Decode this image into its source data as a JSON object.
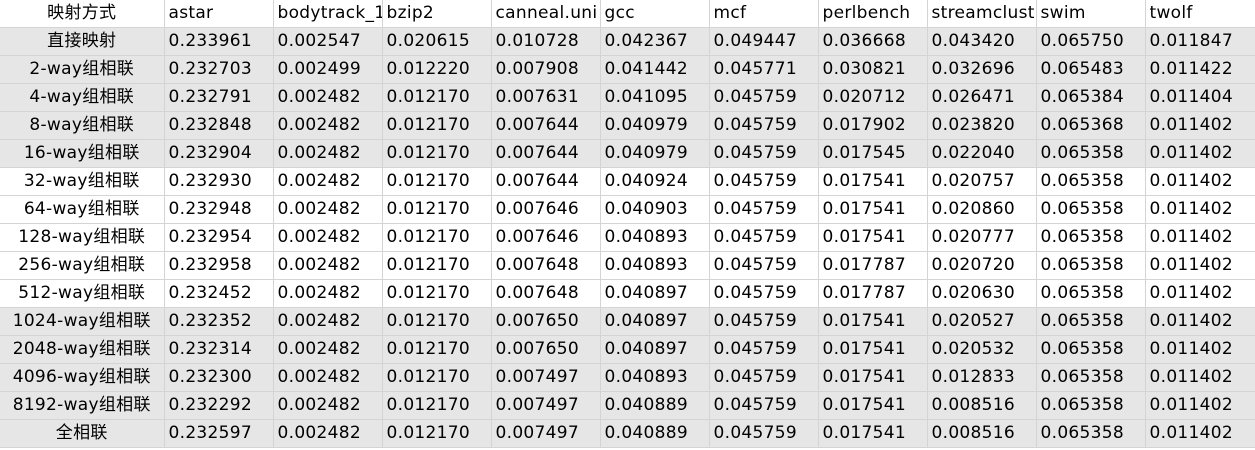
{
  "table": {
    "columns": [
      "映射方式",
      "astar",
      "bodytrack_1",
      "bzip2",
      "canneal.uni",
      "gcc",
      "mcf",
      "perlbench",
      "streamclust",
      "swim",
      "twolf"
    ],
    "rows": [
      {
        "shaded": true,
        "cells": [
          "直接映射",
          "0.233961",
          "0.002547",
          "0.020615",
          "0.010728",
          "0.042367",
          "0.049447",
          "0.036668",
          "0.043420",
          "0.065750",
          "0.011847"
        ]
      },
      {
        "shaded": true,
        "cells": [
          "2-way组相联",
          "0.232703",
          "0.002499",
          "0.012220",
          "0.007908",
          "0.041442",
          "0.045771",
          "0.030821",
          "0.032696",
          "0.065483",
          "0.011422"
        ]
      },
      {
        "shaded": true,
        "cells": [
          "4-way组相联",
          "0.232791",
          "0.002482",
          "0.012170",
          "0.007631",
          "0.041095",
          "0.045759",
          "0.020712",
          "0.026471",
          "0.065384",
          "0.011404"
        ]
      },
      {
        "shaded": true,
        "cells": [
          "8-way组相联",
          "0.232848",
          "0.002482",
          "0.012170",
          "0.007644",
          "0.040979",
          "0.045759",
          "0.017902",
          "0.023820",
          "0.065368",
          "0.011402"
        ]
      },
      {
        "shaded": true,
        "cells": [
          "16-way组相联",
          "0.232904",
          "0.002482",
          "0.012170",
          "0.007644",
          "0.040979",
          "0.045759",
          "0.017545",
          "0.022040",
          "0.065358",
          "0.011402"
        ]
      },
      {
        "shaded": false,
        "cells": [
          "32-way组相联",
          "0.232930",
          "0.002482",
          "0.012170",
          "0.007644",
          "0.040924",
          "0.045759",
          "0.017541",
          "0.020757",
          "0.065358",
          "0.011402"
        ]
      },
      {
        "shaded": false,
        "cells": [
          "64-way组相联",
          "0.232948",
          "0.002482",
          "0.012170",
          "0.007646",
          "0.040903",
          "0.045759",
          "0.017541",
          "0.020860",
          "0.065358",
          "0.011402"
        ]
      },
      {
        "shaded": false,
        "cells": [
          "128-way组相联",
          "0.232954",
          "0.002482",
          "0.012170",
          "0.007646",
          "0.040893",
          "0.045759",
          "0.017541",
          "0.020777",
          "0.065358",
          "0.011402"
        ]
      },
      {
        "shaded": false,
        "cells": [
          "256-way组相联",
          "0.232958",
          "0.002482",
          "0.012170",
          "0.007648",
          "0.040893",
          "0.045759",
          "0.017787",
          "0.020720",
          "0.065358",
          "0.011402"
        ]
      },
      {
        "shaded": false,
        "cells": [
          "512-way组相联",
          "0.232452",
          "0.002482",
          "0.012170",
          "0.007648",
          "0.040897",
          "0.045759",
          "0.017787",
          "0.020630",
          "0.065358",
          "0.011402"
        ]
      },
      {
        "shaded": true,
        "cells": [
          "1024-way组相联",
          "0.232352",
          "0.002482",
          "0.012170",
          "0.007650",
          "0.040897",
          "0.045759",
          "0.017541",
          "0.020527",
          "0.065358",
          "0.011402"
        ]
      },
      {
        "shaded": true,
        "cells": [
          "2048-way组相联",
          "0.232314",
          "0.002482",
          "0.012170",
          "0.007650",
          "0.040897",
          "0.045759",
          "0.017541",
          "0.020532",
          "0.065358",
          "0.011402"
        ]
      },
      {
        "shaded": true,
        "cells": [
          "4096-way组相联",
          "0.232300",
          "0.002482",
          "0.012170",
          "0.007497",
          "0.040893",
          "0.045759",
          "0.017541",
          "0.012833",
          "0.065358",
          "0.011402"
        ]
      },
      {
        "shaded": true,
        "cells": [
          "8192-way组相联",
          "0.232292",
          "0.002482",
          "0.012170",
          "0.007497",
          "0.040889",
          "0.045759",
          "0.017541",
          "0.008516",
          "0.065358",
          "0.011402"
        ]
      },
      {
        "shaded": true,
        "cells": [
          "全相联",
          "0.232597",
          "0.002482",
          "0.012170",
          "0.007497",
          "0.040889",
          "0.045759",
          "0.017541",
          "0.008516",
          "0.065358",
          "0.011402"
        ]
      }
    ]
  }
}
